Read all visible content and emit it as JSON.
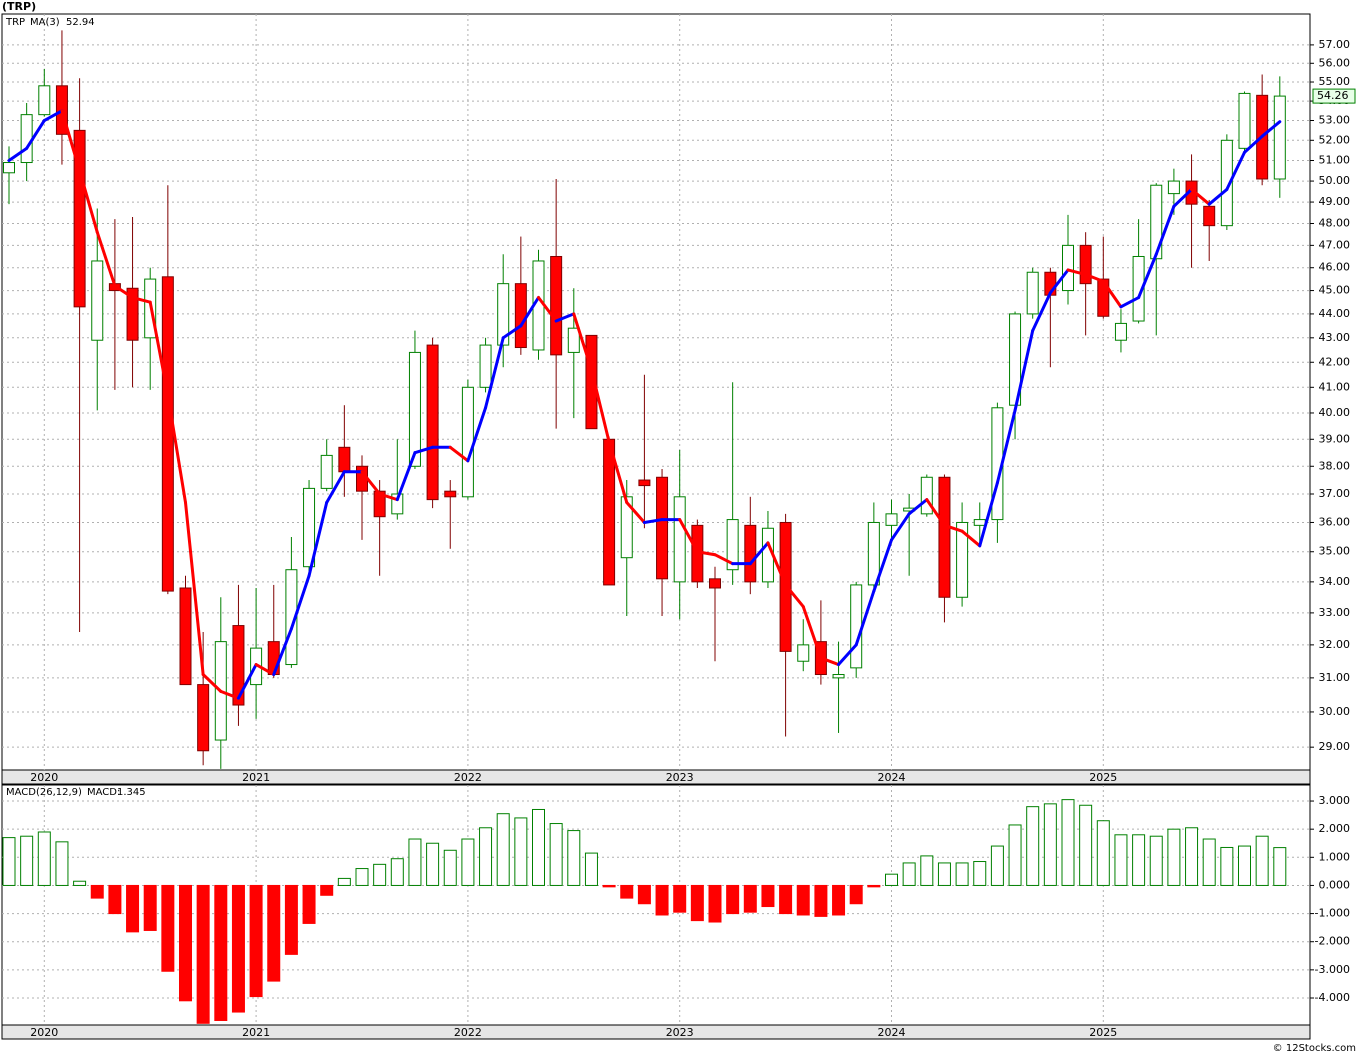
{
  "chart_data": [
    {
      "type": "candlestick",
      "title": "(TRP)",
      "symbol": "TRP",
      "categories": [
        null,
        null,
        "2020",
        null,
        null,
        null,
        null,
        null,
        null,
        null,
        null,
        null,
        null,
        null,
        "2021",
        null,
        null,
        null,
        null,
        null,
        null,
        null,
        null,
        null,
        null,
        null,
        "2022",
        null,
        null,
        null,
        null,
        null,
        null,
        null,
        null,
        null,
        null,
        null,
        "2023",
        null,
        null,
        null,
        null,
        null,
        null,
        null,
        null,
        null,
        null,
        null,
        "2024",
        null,
        null,
        null,
        null,
        null,
        null,
        null,
        null,
        null,
        null,
        null,
        "2025",
        null,
        null,
        null,
        null,
        null,
        null,
        null,
        null,
        null,
        null
      ],
      "open": [
        50.4,
        50.9,
        53.3,
        54.8,
        52.5,
        42.9,
        45.3,
        45.1,
        43.0,
        45.6,
        33.8,
        30.8,
        29.2,
        32.6,
        30.8,
        32.1,
        31.4,
        34.5,
        37.2,
        38.7,
        38.0,
        37.1,
        36.3,
        38.0,
        42.7,
        37.1,
        36.9,
        41.0,
        42.7,
        45.3,
        42.5,
        46.5,
        42.4,
        43.1,
        39.0,
        34.8,
        37.5,
        37.6,
        34.0,
        35.9,
        34.1,
        34.4,
        35.9,
        34.0,
        36.0,
        31.5,
        32.1,
        31.0,
        31.3,
        33.9,
        35.9,
        36.4,
        36.3,
        37.6,
        33.5,
        35.9,
        36.1,
        40.3,
        44.0,
        45.8,
        45.0,
        47.0,
        45.5,
        42.9,
        43.7,
        46.4,
        49.4,
        50.0,
        48.8,
        47.9,
        51.6,
        54.3,
        50.1
      ],
      "high": [
        51.7,
        53.9,
        55.7,
        57.8,
        55.2,
        48.7,
        48.2,
        48.3,
        46.0,
        49.8,
        34.2,
        32.4,
        33.5,
        33.9,
        33.8,
        33.9,
        35.5,
        37.5,
        39.0,
        40.3,
        38.4,
        37.5,
        39.0,
        43.3,
        43.0,
        37.5,
        41.3,
        43.0,
        46.6,
        47.4,
        46.8,
        50.1,
        45.1,
        43.1,
        39.1,
        37.5,
        41.5,
        37.9,
        38.6,
        36.1,
        34.5,
        41.2,
        36.9,
        36.4,
        36.3,
        32.8,
        33.4,
        32.1,
        34.0,
        36.7,
        36.8,
        37.0,
        37.7,
        37.7,
        36.7,
        36.7,
        40.4,
        44.1,
        46.0,
        46.0,
        48.4,
        47.6,
        47.4,
        44.2,
        48.2,
        49.9,
        50.6,
        51.3,
        49.1,
        52.3,
        54.5,
        55.4,
        55.3
      ],
      "low": [
        48.9,
        50.0,
        53.2,
        50.8,
        32.4,
        40.1,
        40.9,
        41.0,
        40.9,
        33.6,
        30.8,
        28.5,
        28.4,
        29.6,
        29.8,
        31.0,
        31.3,
        34.3,
        37.1,
        36.9,
        35.4,
        34.2,
        36.1,
        37.9,
        36.5,
        35.1,
        36.8,
        40.8,
        41.8,
        42.3,
        42.1,
        39.4,
        39.8,
        39.4,
        33.9,
        32.9,
        35.8,
        32.9,
        32.8,
        33.8,
        31.5,
        33.9,
        33.6,
        33.8,
        29.3,
        31.2,
        30.8,
        29.4,
        31.0,
        33.8,
        35.3,
        34.2,
        36.2,
        32.7,
        33.2,
        35.3,
        35.3,
        39.0,
        43.8,
        41.8,
        44.4,
        43.1,
        43.8,
        42.4,
        43.6,
        43.1,
        48.4,
        46.0,
        46.3,
        47.7,
        51.4,
        49.8,
        49.2
      ],
      "close": [
        50.9,
        53.3,
        54.8,
        52.3,
        44.3,
        46.3,
        45.0,
        42.9,
        45.5,
        33.7,
        30.8,
        28.9,
        32.1,
        30.2,
        31.9,
        31.1,
        34.4,
        37.2,
        38.4,
        37.8,
        37.1,
        36.2,
        37.0,
        42.4,
        36.8,
        36.9,
        41.0,
        42.7,
        45.3,
        42.6,
        46.3,
        42.3,
        43.4,
        39.4,
        33.9,
        36.9,
        37.3,
        34.1,
        36.9,
        34.0,
        33.8,
        36.1,
        34.0,
        35.8,
        31.8,
        32.0,
        31.1,
        31.1,
        33.9,
        36.0,
        36.3,
        36.5,
        37.6,
        33.5,
        36.0,
        36.1,
        40.2,
        44.0,
        45.8,
        44.8,
        47.0,
        45.3,
        43.9,
        43.6,
        46.5,
        49.8,
        50.0,
        48.9,
        47.9,
        52.0,
        54.4,
        50.1,
        54.26
      ],
      "up_color": "#008000",
      "down_color": "#ff0000",
      "ma": {
        "name": "MA(3)",
        "up_color": "#0000ff",
        "down_color": "#ff0000",
        "values": [
          51.0,
          51.6,
          53.0,
          53.5,
          50.5,
          47.6,
          45.2,
          44.7,
          44.5,
          40.7,
          36.7,
          31.1,
          30.6,
          30.4,
          31.4,
          31.1,
          32.5,
          34.2,
          36.7,
          37.8,
          37.8,
          37.0,
          36.8,
          38.5,
          38.7,
          38.7,
          38.2,
          40.2,
          43.0,
          43.5,
          44.7,
          43.7,
          44.0,
          41.7,
          38.9,
          36.7,
          36.0,
          36.1,
          36.1,
          35.0,
          34.9,
          34.6,
          34.6,
          35.3,
          33.9,
          33.2,
          31.6,
          31.4,
          32.0,
          33.7,
          35.4,
          36.3,
          36.8,
          35.9,
          35.7,
          35.2,
          37.4,
          40.1,
          43.3,
          44.9,
          45.9,
          45.7,
          45.4,
          44.3,
          44.7,
          46.6,
          48.8,
          49.6,
          48.9,
          49.6,
          51.4,
          52.2,
          52.94
        ]
      },
      "log": true,
      "grid": true,
      "ylim": [
        28.37,
        58.72
      ],
      "yticks": [
        {
          "value": 29,
          "label": "29.00"
        },
        {
          "value": 30,
          "label": "30.00"
        },
        {
          "value": 31,
          "label": "31.00"
        },
        {
          "value": 32,
          "label": "32.00"
        },
        {
          "value": 33,
          "label": "33.00"
        },
        {
          "value": 34,
          "label": "34.00"
        },
        {
          "value": 35,
          "label": "35.00"
        },
        {
          "value": 36,
          "label": "36.00"
        },
        {
          "value": 37,
          "label": "37.00"
        },
        {
          "value": 38,
          "label": "38.00"
        },
        {
          "value": 39,
          "label": "39.00"
        },
        {
          "value": 40,
          "label": "40.00"
        },
        {
          "value": 41,
          "label": "41.00"
        },
        {
          "value": 42,
          "label": "42.00"
        },
        {
          "value": 43,
          "label": "43.00"
        },
        {
          "value": 44,
          "label": "44.00"
        },
        {
          "value": 45,
          "label": "45.00"
        },
        {
          "value": 46,
          "label": "46.00"
        },
        {
          "value": 47,
          "label": "47.00"
        },
        {
          "value": 48,
          "label": "48.00"
        },
        {
          "value": 49,
          "label": "49.00"
        },
        {
          "value": 50,
          "label": "50.00"
        },
        {
          "value": 51,
          "label": "51.00"
        },
        {
          "value": 52,
          "label": "52.00"
        },
        {
          "value": 53,
          "label": "53.00"
        },
        {
          "value": 54,
          "label": "54.00"
        },
        {
          "value": 55,
          "label": "55.00"
        },
        {
          "value": 56,
          "label": "56.00"
        },
        {
          "value": 57,
          "label": "57.00"
        }
      ]
    },
    {
      "type": "histogram-bar",
      "title": "MACD(26,12,9)",
      "macd_label": "MACD:",
      "categories": [
        null,
        null,
        "2020",
        null,
        null,
        null,
        null,
        null,
        null,
        null,
        null,
        null,
        null,
        null,
        "2021",
        null,
        null,
        null,
        null,
        null,
        null,
        null,
        null,
        null,
        null,
        null,
        "2022",
        null,
        null,
        null,
        null,
        null,
        null,
        null,
        null,
        null,
        null,
        null,
        "2023",
        null,
        null,
        null,
        null,
        null,
        null,
        null,
        null,
        null,
        null,
        null,
        "2024",
        null,
        null,
        null,
        null,
        null,
        null,
        null,
        null,
        null,
        null,
        null,
        "2025",
        null,
        null,
        null,
        null,
        null,
        null,
        null,
        null,
        null,
        null
      ],
      "values": [
        1.7,
        1.75,
        1.9,
        1.55,
        0.15,
        -0.45,
        -1.0,
        -1.65,
        -1.6,
        -3.05,
        -4.1,
        -4.9,
        -4.8,
        -4.5,
        -3.95,
        -3.4,
        -2.45,
        -1.35,
        -0.35,
        0.25,
        0.6,
        0.75,
        0.95,
        1.65,
        1.5,
        1.25,
        1.65,
        2.05,
        2.55,
        2.4,
        2.7,
        2.2,
        1.95,
        1.15,
        -0.05,
        -0.45,
        -0.65,
        -1.05,
        -0.95,
        -1.25,
        -1.3,
        -1.0,
        -0.95,
        -0.75,
        -1.0,
        -1.05,
        -1.1,
        -1.05,
        -0.65,
        -0.05,
        0.4,
        0.8,
        1.05,
        0.8,
        0.8,
        0.85,
        1.4,
        2.15,
        2.8,
        2.9,
        3.05,
        2.85,
        2.3,
        1.8,
        1.8,
        1.75,
        2.0,
        2.05,
        1.65,
        1.35,
        1.4,
        1.75,
        1.345
      ],
      "up_color": "#008000",
      "down_color": "#ff0000",
      "grid": true,
      "ylim": [
        -4.96,
        3.57
      ],
      "yticks": [
        {
          "value": -4,
          "label": "-4.000"
        },
        {
          "value": -3,
          "label": "-3.000"
        },
        {
          "value": -2,
          "label": "-2.000"
        },
        {
          "value": -1,
          "label": "-1.000"
        },
        {
          "value": 0,
          "label": "0.000"
        },
        {
          "value": 1,
          "label": "1.000"
        },
        {
          "value": 2,
          "label": "2.000"
        },
        {
          "value": 3,
          "label": "3.000"
        }
      ]
    }
  ],
  "footer": "© 12Stocks.com"
}
